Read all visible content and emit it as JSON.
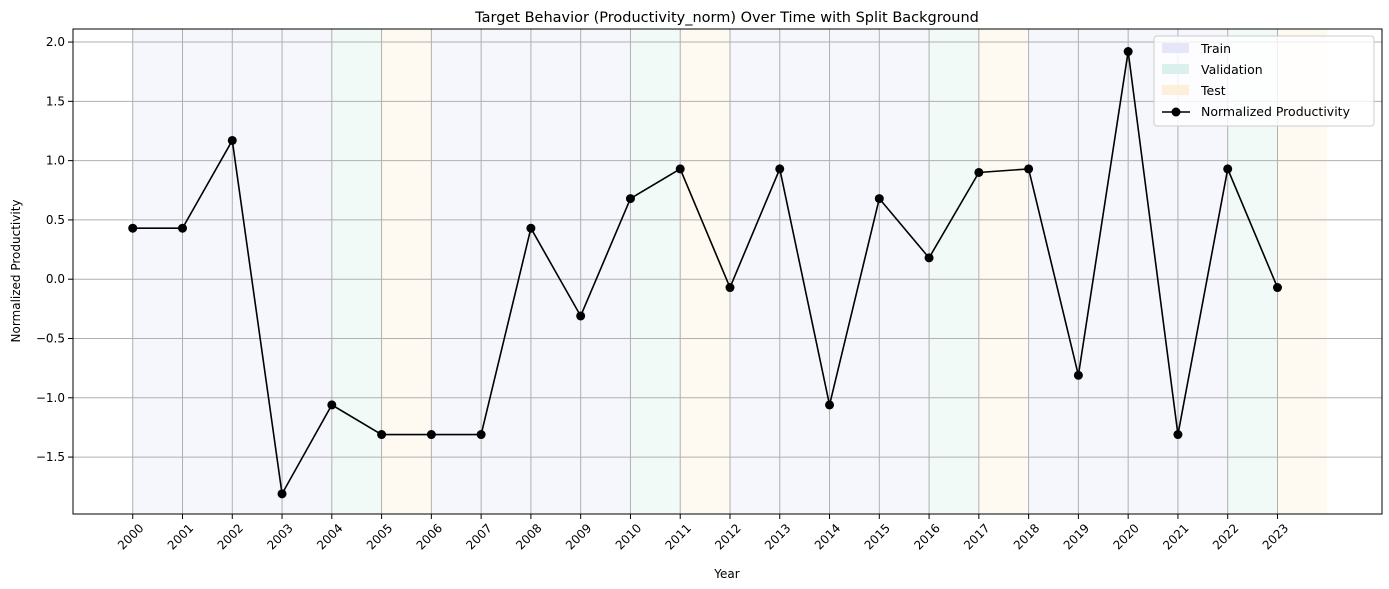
{
  "chart_data": {
    "type": "line",
    "title": "Target Behavior (Productivity_norm) Over Time with Split Background",
    "xlabel": "Year",
    "ylabel": "Normalized Productivity",
    "categories": [
      "2000",
      "2001",
      "2002",
      "2003",
      "2004",
      "2005",
      "2006",
      "2007",
      "2008",
      "2009",
      "2010",
      "2011",
      "2012",
      "2013",
      "2014",
      "2015",
      "2016",
      "2017",
      "2018",
      "2019",
      "2020",
      "2021",
      "2022",
      "2023"
    ],
    "series": [
      {
        "name": "Normalized Productivity",
        "color": "#000000",
        "marker": "circle",
        "values": [
          0.43,
          0.43,
          1.17,
          -1.81,
          -1.06,
          -1.31,
          -1.31,
          -1.31,
          0.43,
          -0.31,
          0.68,
          0.93,
          -0.07,
          0.93,
          -1.06,
          0.68,
          0.18,
          0.9,
          0.93,
          -0.81,
          1.92,
          -1.31,
          0.93,
          -0.07
        ]
      }
    ],
    "splits": [
      {
        "label": "Train",
        "color": "#e6e6fa",
        "ranges": [
          [
            2000,
            2004
          ],
          [
            2006,
            2010
          ],
          [
            2012,
            2016
          ],
          [
            2018,
            2022
          ]
        ]
      },
      {
        "label": "Validation",
        "color": "#d9f0ec",
        "ranges": [
          [
            2004,
            2005
          ],
          [
            2010,
            2011
          ],
          [
            2016,
            2017
          ],
          [
            2022,
            2023
          ]
        ]
      },
      {
        "label": "Test",
        "color": "#fdf0da",
        "ranges": [
          [
            2005,
            2006
          ],
          [
            2011,
            2012
          ],
          [
            2017,
            2018
          ],
          [
            2023,
            2024
          ]
        ]
      }
    ],
    "yticks": [
      "2.0",
      "1.5",
      "1.0",
      "0.5",
      "0.0",
      "−0.5",
      "−1.0",
      "−1.5"
    ],
    "ytick_values": [
      2.0,
      1.5,
      1.0,
      0.5,
      0.0,
      -0.5,
      -1.0,
      -1.5
    ],
    "xlim": [
      1998.8,
      2025.1
    ],
    "ylim": [
      -1.98,
      2.11
    ],
    "grid": true,
    "legend_position": "top-right"
  }
}
